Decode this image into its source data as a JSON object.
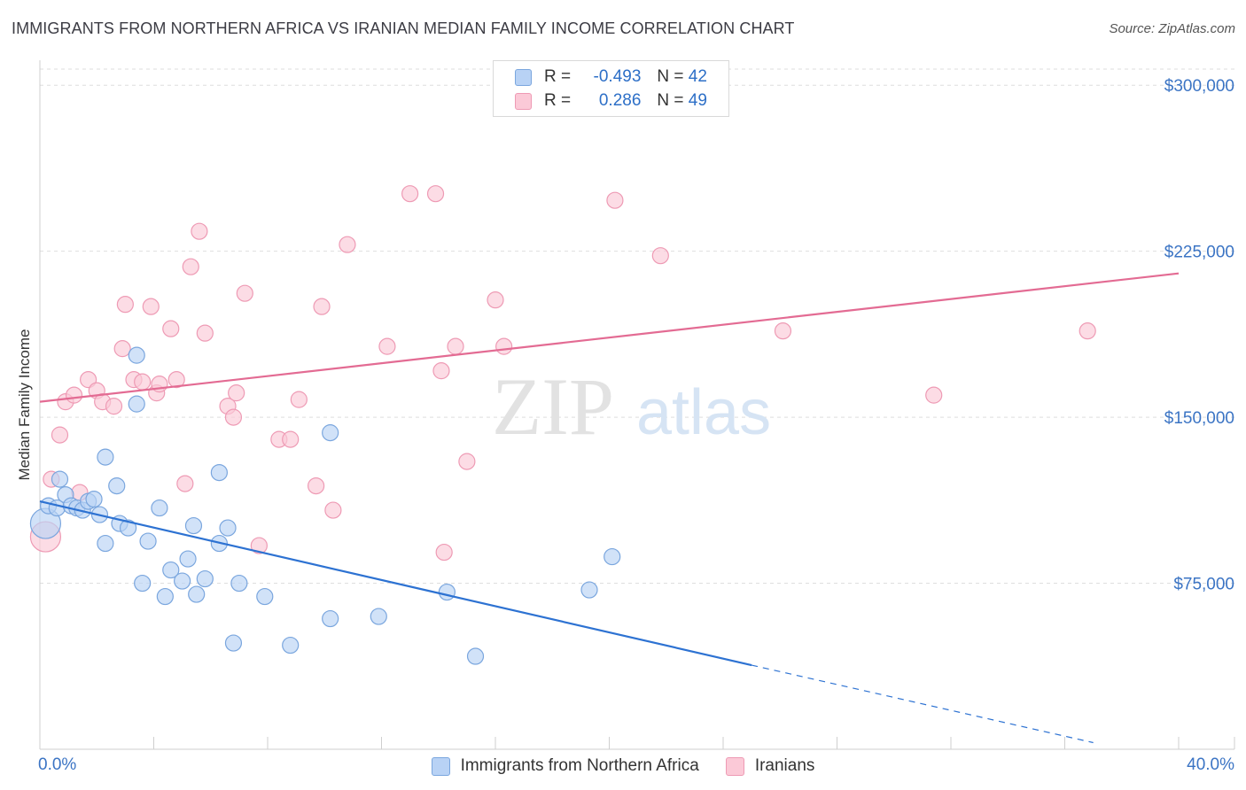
{
  "header": {
    "title": "IMMIGRANTS FROM NORTHERN AFRICA VS IRANIAN MEDIAN FAMILY INCOME CORRELATION CHART",
    "source": "Source: ZipAtlas.com"
  },
  "legend": {
    "r_label": "R =",
    "n_label": "N =",
    "series": [
      {
        "r": "-0.493",
        "n": "42",
        "name": "Immigrants from Northern Africa"
      },
      {
        "r": "0.286",
        "n": "49",
        "name": "Iranians"
      }
    ]
  },
  "watermark": {
    "zip": "ZIP",
    "atlas": "atlas"
  },
  "colors": {
    "blue_fill": "#b8d2f5",
    "blue_stroke": "#7aa6de",
    "blue_line": "#2d72d2",
    "pink_fill": "#fbc9d7",
    "pink_stroke": "#ee9ab4",
    "pink_line": "#e36b93",
    "axis_label": "#3b74c4"
  },
  "chart_data": {
    "type": "scatter",
    "title": "IMMIGRANTS FROM NORTHERN AFRICA VS IRANIAN MEDIAN FAMILY INCOME CORRELATION CHART",
    "xlabel": "",
    "ylabel": "Median Family Income",
    "xlim": [
      0,
      40
    ],
    "ylim": [
      0,
      312500
    ],
    "x_tick_labels": [
      "0.0%",
      "40.0%"
    ],
    "y_ticks": [
      75000,
      150000,
      225000,
      300000
    ],
    "y_tick_labels": [
      "$75,000",
      "$150,000",
      "$225,000",
      "$300,000"
    ],
    "grid": "horizontal dashed",
    "legend_position": "top-center",
    "series": [
      {
        "name": "Immigrants from Northern Africa",
        "color": "#b8d2f5",
        "points": [
          [
            0.2,
            102000
          ],
          [
            0.3,
            110000
          ],
          [
            0.6,
            109000
          ],
          [
            0.7,
            122000
          ],
          [
            0.9,
            115000
          ],
          [
            1.1,
            110000
          ],
          [
            1.3,
            109000
          ],
          [
            1.5,
            108000
          ],
          [
            1.7,
            112000
          ],
          [
            1.9,
            113000
          ],
          [
            2.1,
            106000
          ],
          [
            2.3,
            93000
          ],
          [
            2.7,
            119000
          ],
          [
            2.3,
            132000
          ],
          [
            2.8,
            102000
          ],
          [
            3.1,
            100000
          ],
          [
            3.4,
            156000
          ],
          [
            3.4,
            178000
          ],
          [
            3.6,
            75000
          ],
          [
            3.8,
            94000
          ],
          [
            4.2,
            109000
          ],
          [
            4.4,
            69000
          ],
          [
            4.6,
            81000
          ],
          [
            5.0,
            76000
          ],
          [
            5.2,
            86000
          ],
          [
            5.4,
            101000
          ],
          [
            5.5,
            70000
          ],
          [
            5.8,
            77000
          ],
          [
            6.3,
            125000
          ],
          [
            6.3,
            93000
          ],
          [
            6.6,
            100000
          ],
          [
            6.8,
            48000
          ],
          [
            7.0,
            75000
          ],
          [
            7.9,
            69000
          ],
          [
            8.8,
            47000
          ],
          [
            10.2,
            143000
          ],
          [
            10.2,
            59000
          ],
          [
            11.9,
            60000
          ],
          [
            14.3,
            71000
          ],
          [
            15.3,
            42000
          ],
          [
            19.3,
            72000
          ],
          [
            20.1,
            87000
          ]
        ]
      },
      {
        "name": "Iranians",
        "color": "#fbc9d7",
        "points": [
          [
            0.2,
            96000
          ],
          [
            0.4,
            122000
          ],
          [
            0.7,
            142000
          ],
          [
            0.9,
            157000
          ],
          [
            1.2,
            160000
          ],
          [
            1.4,
            116000
          ],
          [
            1.7,
            167000
          ],
          [
            2.0,
            162000
          ],
          [
            2.2,
            157000
          ],
          [
            2.6,
            155000
          ],
          [
            2.9,
            181000
          ],
          [
            3.0,
            201000
          ],
          [
            3.3,
            167000
          ],
          [
            3.6,
            166000
          ],
          [
            3.9,
            200000
          ],
          [
            4.1,
            161000
          ],
          [
            4.2,
            165000
          ],
          [
            4.6,
            190000
          ],
          [
            4.8,
            167000
          ],
          [
            5.1,
            120000
          ],
          [
            5.3,
            218000
          ],
          [
            5.6,
            234000
          ],
          [
            5.8,
            188000
          ],
          [
            6.6,
            155000
          ],
          [
            6.8,
            150000
          ],
          [
            6.9,
            161000
          ],
          [
            7.2,
            206000
          ],
          [
            7.7,
            92000
          ],
          [
            8.4,
            140000
          ],
          [
            8.8,
            140000
          ],
          [
            9.1,
            158000
          ],
          [
            9.7,
            119000
          ],
          [
            9.9,
            200000
          ],
          [
            10.3,
            108000
          ],
          [
            10.8,
            228000
          ],
          [
            12.2,
            182000
          ],
          [
            13.0,
            251000
          ],
          [
            13.9,
            251000
          ],
          [
            14.1,
            171000
          ],
          [
            14.2,
            89000
          ],
          [
            14.6,
            182000
          ],
          [
            15.0,
            130000
          ],
          [
            16.0,
            203000
          ],
          [
            16.3,
            182000
          ],
          [
            20.2,
            248000
          ],
          [
            21.8,
            223000
          ],
          [
            26.1,
            189000
          ],
          [
            31.4,
            160000
          ],
          [
            36.8,
            189000
          ]
        ]
      }
    ],
    "trend_lines": [
      {
        "series": "Immigrants from Northern Africa",
        "solid_from": [
          0,
          112000
        ],
        "solid_to": [
          25,
          38000
        ],
        "dashed_to": [
          37,
          3000
        ]
      },
      {
        "series": "Iranians",
        "from": [
          0,
          157000
        ],
        "to": [
          40,
          215000
        ]
      }
    ]
  }
}
